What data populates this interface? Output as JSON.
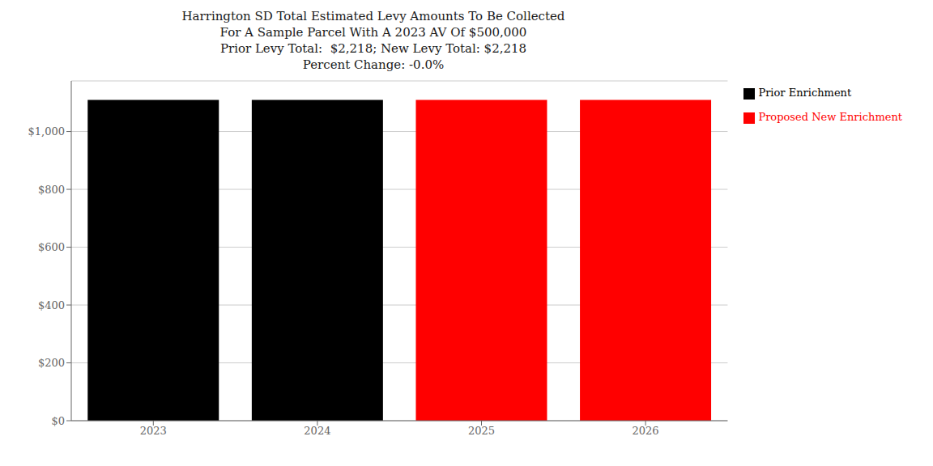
{
  "chart_data": {
    "type": "bar",
    "title": "Harrington SD Total Estimated Levy Amounts To Be Collected\nFor A Sample Parcel With A 2023 AV Of $500,000\nPrior Levy Total:  $2,218; New Levy Total: $2,218\nPercent Change: -0.0%",
    "categories": [
      "2023",
      "2024",
      "2025",
      "2026"
    ],
    "series": [
      {
        "name": "Prior Enrichment",
        "color": "#000000",
        "values": [
          1109,
          1109,
          null,
          null
        ]
      },
      {
        "name": "Proposed New Enrichment",
        "color": "#ff0000",
        "values": [
          null,
          null,
          1109,
          1109
        ]
      }
    ],
    "ylim": [
      0,
      1175
    ],
    "yticks": [
      {
        "value": 0,
        "label": "$0"
      },
      {
        "value": 200,
        "label": "$200"
      },
      {
        "value": 400,
        "label": "$400"
      },
      {
        "value": 600,
        "label": "$600"
      },
      {
        "value": 800,
        "label": "$800"
      },
      {
        "value": 1000,
        "label": "$1,000"
      }
    ],
    "grid": true,
    "legend": "right"
  }
}
